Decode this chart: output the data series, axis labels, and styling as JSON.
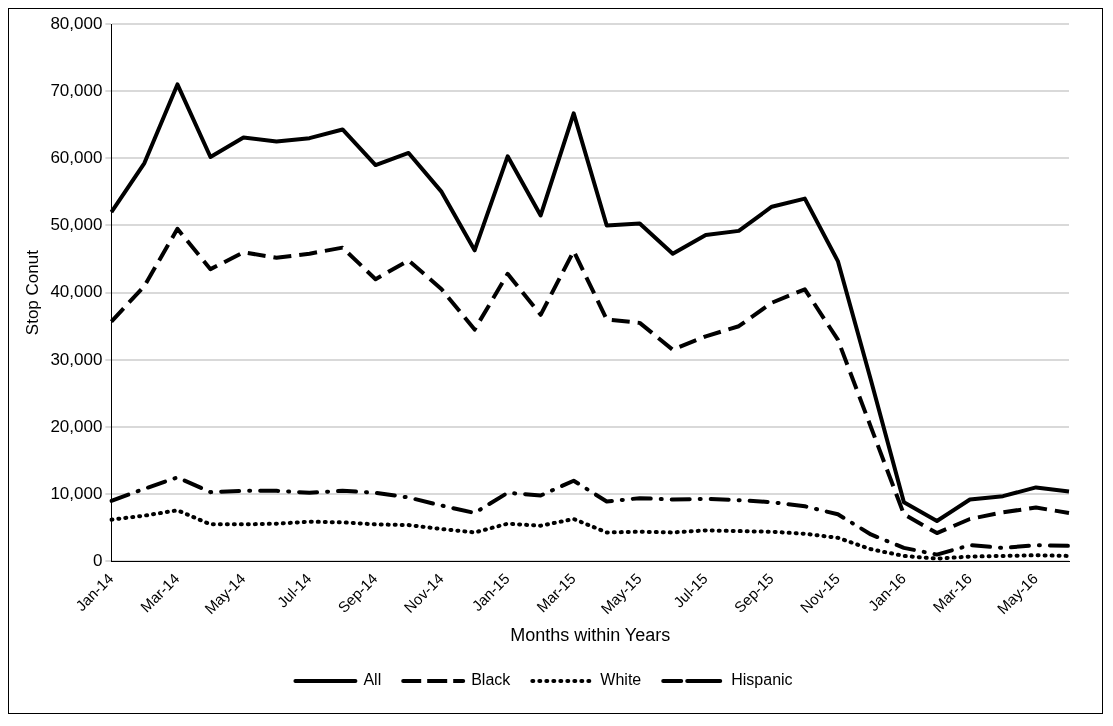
{
  "chart_data": {
    "type": "line",
    "xlabel": "Months within Years",
    "ylabel": "Stop Conut",
    "categories": [
      "Jan-14",
      null,
      "Mar-14",
      null,
      "May-14",
      null,
      "Jul-14",
      null,
      "Sep-14",
      null,
      "Nov-14",
      null,
      "Jan-15",
      null,
      "Mar-15",
      null,
      "May-15",
      null,
      "Jul-15",
      null,
      "Sep-15",
      null,
      "Nov-15",
      null,
      "Jan-16",
      null,
      "Mar-16",
      null,
      "May-16",
      null
    ],
    "series": [
      {
        "name": "All",
        "color": "#000000",
        "line_style": "solid",
        "values": [
          52000,
          59300,
          71000,
          60200,
          63100,
          62500,
          63000,
          64300,
          59000,
          60800,
          55000,
          46300,
          60300,
          51500,
          66700,
          50000,
          50300,
          45800,
          48600,
          49200,
          52800,
          54000,
          44700,
          27000,
          8800,
          6000,
          9200,
          9700,
          11000,
          10400
        ]
      },
      {
        "name": "Black",
        "color": "#000000",
        "line_style": "dashed",
        "values": [
          35700,
          41000,
          49500,
          43500,
          46000,
          45200,
          45800,
          46700,
          42000,
          44800,
          40500,
          34500,
          42800,
          36700,
          46200,
          36000,
          35500,
          31500,
          33500,
          35000,
          38500,
          40500,
          33000,
          20000,
          7000,
          4200,
          6300,
          7300,
          8000,
          7200
        ]
      },
      {
        "name": "White",
        "color": "#000000",
        "line_style": "dotted",
        "values": [
          6200,
          6800,
          7600,
          5500,
          5500,
          5600,
          5900,
          5800,
          5500,
          5400,
          4800,
          4300,
          5600,
          5300,
          6300,
          4300,
          4400,
          4300,
          4600,
          4500,
          4400,
          4100,
          3500,
          1800,
          800,
          400,
          700,
          800,
          900,
          800
        ]
      },
      {
        "name": "Hispanic",
        "color": "#000000",
        "line_style": "dashdot",
        "values": [
          9000,
          10800,
          12500,
          10300,
          10500,
          10500,
          10200,
          10500,
          10200,
          9500,
          8300,
          7200,
          10200,
          9800,
          12000,
          8900,
          9400,
          9200,
          9300,
          9100,
          8800,
          8200,
          7000,
          4000,
          2000,
          1000,
          2400,
          2000,
          2400,
          2300
        ]
      }
    ],
    "ylim": [
      0,
      80000
    ],
    "yticks": [
      {
        "value": 0,
        "label": "0"
      },
      {
        "value": 10000,
        "label": "10,000"
      },
      {
        "value": 20000,
        "label": "20,000"
      },
      {
        "value": 30000,
        "label": "30,000"
      },
      {
        "value": 40000,
        "label": "40,000"
      },
      {
        "value": 50000,
        "label": "50,000"
      },
      {
        "value": 60000,
        "label": "60,000"
      },
      {
        "value": 70000,
        "label": "70,000"
      },
      {
        "value": 80000,
        "label": "80,000"
      }
    ],
    "grid": "y",
    "legend": "bottom",
    "marker": "none"
  }
}
